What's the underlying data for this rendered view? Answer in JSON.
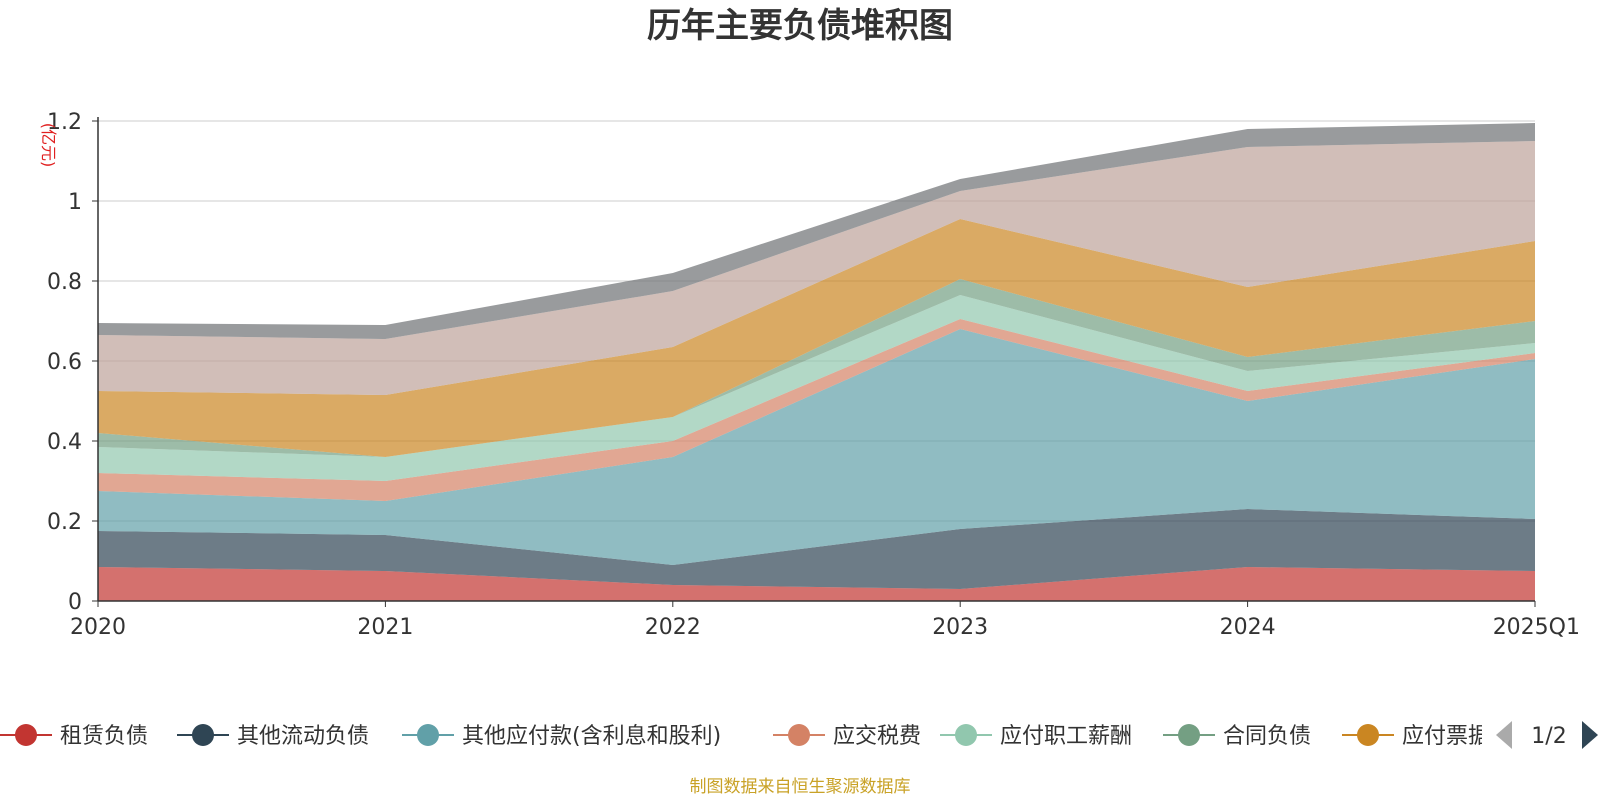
{
  "chart_data": {
    "type": "area",
    "stacked": true,
    "title": "历年主要负债堆积图",
    "ylabel": "(亿元)",
    "categories": [
      "2020",
      "2021",
      "2022",
      "2023",
      "2024",
      "2025Q1"
    ],
    "ylim": [
      0,
      1.2
    ],
    "yticks": [
      "0",
      "0.2",
      "0.4",
      "0.6",
      "0.8",
      "1",
      "1.2"
    ],
    "grid": true,
    "series": [
      {
        "name": "租赁负债",
        "color": "#c23531",
        "values": [
          0.085,
          0.075,
          0.04,
          0.03,
          0.085,
          0.075
        ]
      },
      {
        "name": "其他流动负债",
        "color": "#2f4554",
        "values": [
          0.09,
          0.09,
          0.05,
          0.15,
          0.145,
          0.13
        ]
      },
      {
        "name": "其他应付款(含利息和股利)",
        "color": "#61a0a8",
        "values": [
          0.1,
          0.085,
          0.27,
          0.5,
          0.27,
          0.4
        ]
      },
      {
        "name": "应交税费",
        "color": "#d48265",
        "values": [
          0.045,
          0.05,
          0.04,
          0.025,
          0.025,
          0.015
        ]
      },
      {
        "name": "应付职工薪酬",
        "color": "#91c7ae",
        "values": [
          0.065,
          0.06,
          0.06,
          0.06,
          0.05,
          0.025
        ]
      },
      {
        "name": "合同负债",
        "color": "#749f83",
        "values": [
          0.035,
          0.0,
          0.0,
          0.04,
          0.035,
          0.055
        ]
      },
      {
        "name": "应付票据",
        "color": "#ca8622",
        "values": [
          0.105,
          0.155,
          0.175,
          0.15,
          0.175,
          0.2
        ]
      },
      {
        "name": "",
        "color": "#bda29a",
        "values": [
          0.14,
          0.14,
          0.14,
          0.07,
          0.35,
          0.25
        ]
      },
      {
        "name": "",
        "color": "#6e7074",
        "values": [
          0.03,
          0.035,
          0.045,
          0.03,
          0.045,
          0.045
        ]
      }
    ],
    "legend": {
      "position": "bottom",
      "visible_items": [
        "租赁负债",
        "其他流动负债",
        "其他应付款(含利息和股利)",
        "应交税费",
        "应付职工薪酬",
        "合同负债",
        "应付票据"
      ],
      "page": "1/2"
    }
  },
  "source_note": "制图数据来自恒生聚源数据库"
}
